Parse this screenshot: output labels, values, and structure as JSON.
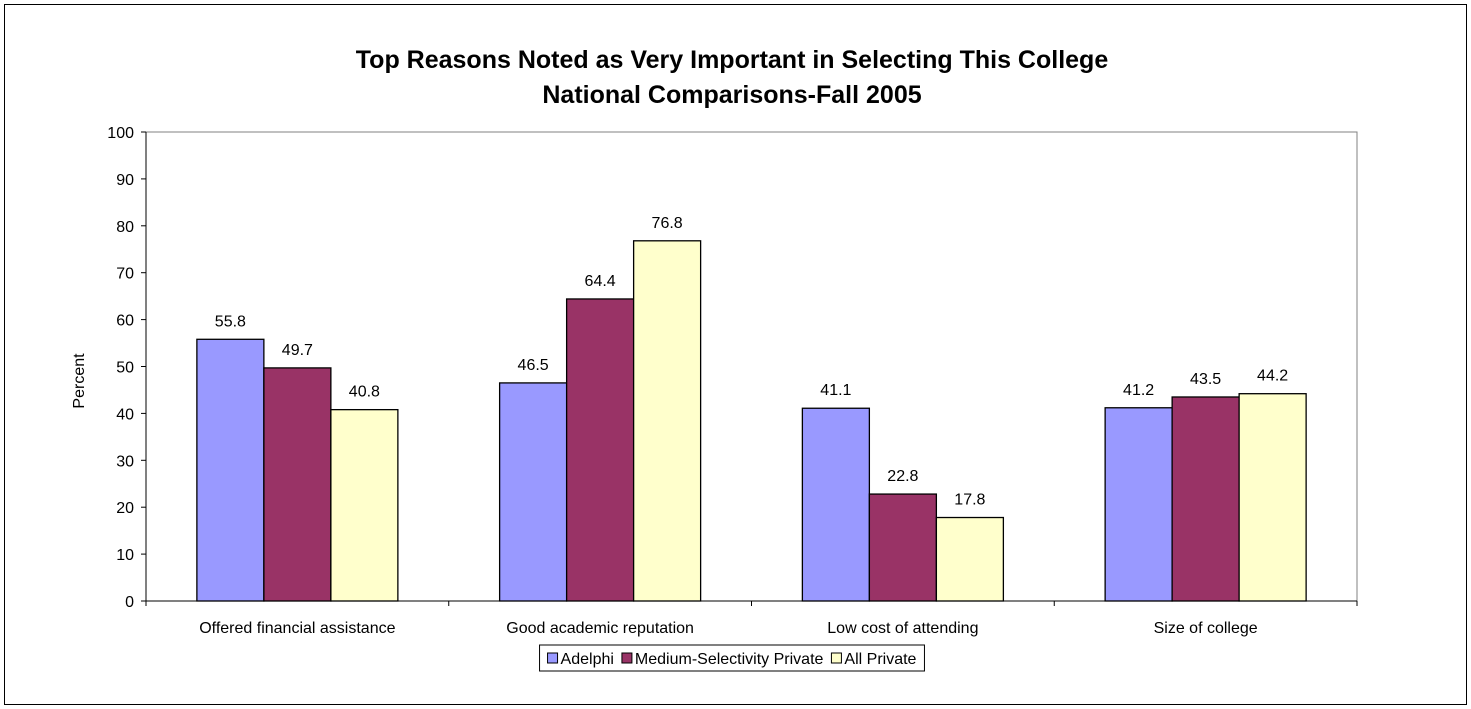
{
  "chart_data": {
    "type": "bar",
    "title": "Top Reasons Noted as Very Important in Selecting This College",
    "subtitle": "National Comparisons-Fall 2005",
    "xlabel": "",
    "ylabel": "Percent",
    "ylim": [
      0,
      100
    ],
    "ytick_step": 10,
    "grid": false,
    "legend_position": "bottom",
    "categories": [
      "Offered financial assistance",
      "Good academic reputation",
      "Low cost of attending",
      "Size of college"
    ],
    "series": [
      {
        "name": "Adelphi",
        "color": "#9999FF",
        "values": [
          55.8,
          46.5,
          41.1,
          41.2
        ]
      },
      {
        "name": "Medium-Selectivity Private",
        "color": "#993366",
        "values": [
          49.7,
          64.4,
          22.8,
          43.5
        ]
      },
      {
        "name": "All Private",
        "color": "#FFFFCC",
        "values": [
          40.8,
          76.8,
          17.8,
          44.2
        ]
      }
    ]
  }
}
